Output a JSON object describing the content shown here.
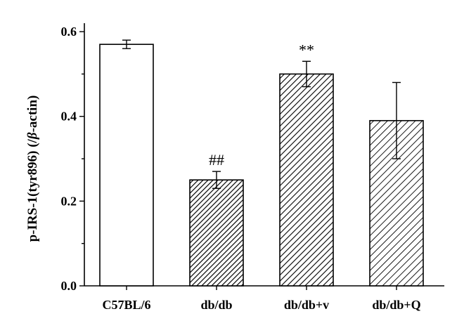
{
  "chart_data": {
    "type": "bar",
    "title": "",
    "xlabel": "",
    "ylabel": "p-IRS-1(tyr896) (/",
    "ylabel_symbol": "β",
    "ylabel_suffix": "-actin)",
    "ylim": [
      0,
      0.62
    ],
    "yticks": [
      {
        "value": 0.0,
        "label": "0.0"
      },
      {
        "value": 0.2,
        "label": "0.2"
      },
      {
        "value": 0.4,
        "label": "0.4"
      },
      {
        "value": 0.6,
        "label": "0.6"
      }
    ],
    "categories": [
      "C57BL/6",
      "db/db",
      "db/db+v",
      "db/db+Q"
    ],
    "values": [
      0.57,
      0.25,
      0.5,
      0.39
    ],
    "errors": [
      0.01,
      0.02,
      0.03,
      0.09
    ],
    "fills": [
      "white",
      "dense-hatch",
      "hatch",
      "light-hatch"
    ],
    "annotations": [
      "",
      "##",
      "**",
      ""
    ],
    "grid": false,
    "legend": "none"
  }
}
